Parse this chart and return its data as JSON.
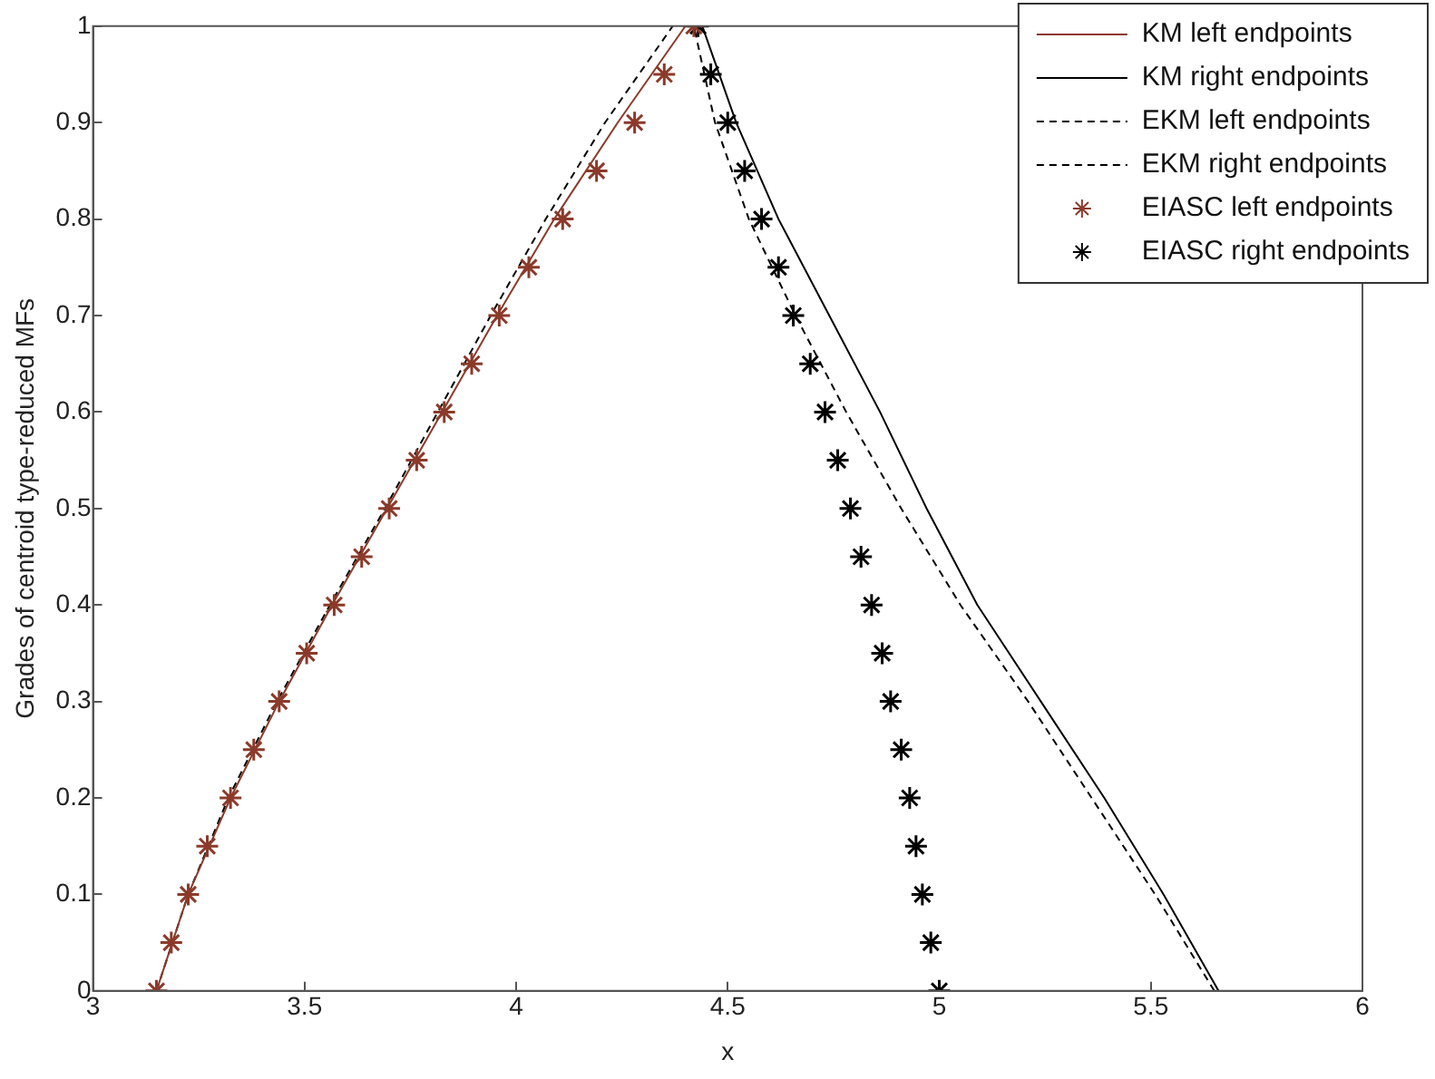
{
  "chart_data": {
    "type": "line",
    "xlabel": "x",
    "ylabel": "Grades of centroid type-reduced MFs",
    "xlim": [
      3,
      6
    ],
    "ylim": [
      0,
      1
    ],
    "xticks": [
      3,
      3.5,
      4,
      4.5,
      5,
      5.5,
      6
    ],
    "yticks": [
      0,
      0.1,
      0.2,
      0.3,
      0.4,
      0.5,
      0.6,
      0.7,
      0.8,
      0.9,
      1
    ],
    "grid": false,
    "legend": "top right",
    "series": [
      {
        "name": "KM left endpoints",
        "type": "line",
        "color": "#8b3a2a",
        "line_style": "solid",
        "marker": "none",
        "x": [
          3.15,
          3.225,
          3.325,
          3.44,
          3.565,
          3.695,
          3.825,
          3.955,
          4.09,
          4.24,
          4.4
        ],
        "values": [
          0,
          0.1,
          0.2,
          0.3,
          0.4,
          0.5,
          0.6,
          0.7,
          0.8,
          0.9,
          1
        ]
      },
      {
        "name": "KM right endpoints",
        "type": "line",
        "color": "#000000",
        "line_style": "solid",
        "marker": "none",
        "x": [
          5.66,
          5.53,
          5.39,
          5.24,
          5.09,
          4.97,
          4.86,
          4.74,
          4.62,
          4.52,
          4.44
        ],
        "values": [
          0,
          0.1,
          0.2,
          0.3,
          0.4,
          0.5,
          0.6,
          0.7,
          0.8,
          0.9,
          1
        ]
      },
      {
        "name": "EKM left endpoints",
        "type": "line",
        "color": "#000000",
        "line_style": "dashed",
        "marker": "none",
        "x": [
          3.15,
          3.225,
          3.32,
          3.435,
          3.56,
          3.69,
          3.815,
          3.94,
          4.07,
          4.21,
          4.37
        ],
        "values": [
          0,
          0.1,
          0.2,
          0.3,
          0.4,
          0.5,
          0.6,
          0.7,
          0.8,
          0.9,
          1
        ]
      },
      {
        "name": "EKM right endpoints",
        "type": "line",
        "color": "#000000",
        "line_style": "dashed",
        "marker": "none",
        "x": [
          5.65,
          5.51,
          5.36,
          5.21,
          5.05,
          4.91,
          4.78,
          4.66,
          4.55,
          4.47,
          4.42
        ],
        "values": [
          0,
          0.1,
          0.2,
          0.3,
          0.4,
          0.5,
          0.6,
          0.7,
          0.8,
          0.9,
          1
        ]
      },
      {
        "name": "EIASC left endpoints",
        "type": "scatter",
        "color": "#8b3a2a",
        "marker": "cross",
        "x": [
          3.15,
          3.185,
          3.225,
          3.27,
          3.325,
          3.38,
          3.44,
          3.505,
          3.57,
          3.635,
          3.7,
          3.765,
          3.83,
          3.895,
          3.96,
          4.03,
          4.11,
          4.19,
          4.28,
          4.35,
          4.42
        ],
        "values": [
          0,
          0.05,
          0.1,
          0.15,
          0.2,
          0.25,
          0.3,
          0.35,
          0.4,
          0.45,
          0.5,
          0.55,
          0.6,
          0.65,
          0.7,
          0.75,
          0.8,
          0.85,
          0.9,
          0.95,
          1
        ]
      },
      {
        "name": "EIASC right endpoints",
        "type": "scatter",
        "color": "#000000",
        "marker": "cross",
        "x": [
          5,
          4.98,
          4.96,
          4.945,
          4.93,
          4.91,
          4.885,
          4.865,
          4.84,
          4.815,
          4.79,
          4.76,
          4.73,
          4.695,
          4.655,
          4.62,
          4.58,
          4.54,
          4.5,
          4.46,
          4.43
        ],
        "values": [
          0,
          0.05,
          0.1,
          0.15,
          0.2,
          0.25,
          0.3,
          0.35,
          0.4,
          0.45,
          0.5,
          0.55,
          0.6,
          0.65,
          0.7,
          0.75,
          0.8,
          0.85,
          0.9,
          0.95,
          1
        ]
      }
    ]
  }
}
